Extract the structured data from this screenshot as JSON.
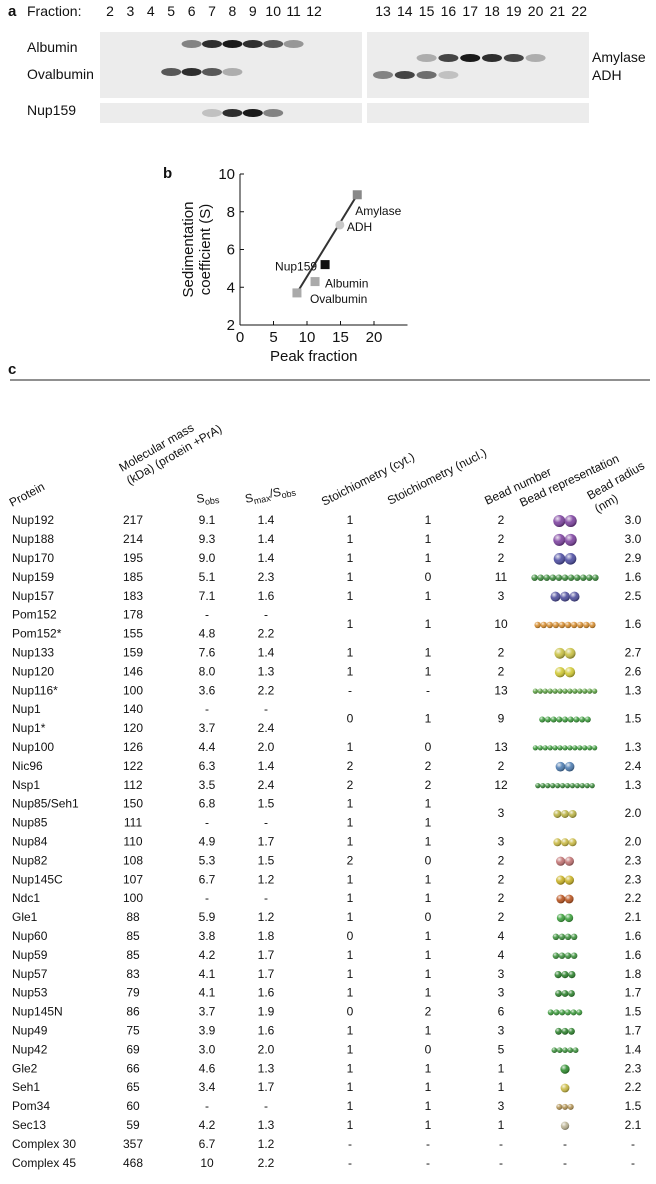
{
  "panel_a": {
    "label": "a",
    "fraction_label": "Fraction:",
    "fractions": [
      "2",
      "3",
      "4",
      "5",
      "6",
      "7",
      "8",
      "9",
      "10",
      "11",
      "12",
      "13",
      "14",
      "15",
      "16",
      "17",
      "18",
      "19",
      "20",
      "21",
      "22"
    ],
    "lanes_left": [
      "Albumin",
      "Ovalbumin",
      "Nup159"
    ],
    "lanes_right": [
      "Amylase",
      "ADH"
    ]
  },
  "chart_data": {
    "type": "scatter",
    "panel_label": "b",
    "xlabel": "Peak fraction",
    "ylabel": [
      "Sedimentation",
      "coefficient (S)"
    ],
    "xlim": [
      0,
      25
    ],
    "ylim": [
      2,
      10
    ],
    "xticks": [
      0,
      5,
      10,
      15,
      20
    ],
    "yticks": [
      2,
      4,
      6,
      8,
      10
    ],
    "fit_line": true,
    "fit_color": "#333333",
    "points": [
      {
        "label": "Ovalbumin",
        "x": 8.5,
        "y": 3.7,
        "color": "#aaaaaa",
        "marker": "square"
      },
      {
        "label": "Albumin",
        "x": 11.2,
        "y": 4.3,
        "color": "#aaaaaa",
        "marker": "square"
      },
      {
        "label": "Nup159",
        "x": 12.7,
        "y": 5.2,
        "color": "#111111",
        "marker": "square"
      },
      {
        "label": "ADH",
        "x": 14.9,
        "y": 7.3,
        "color": "#c8c8c8",
        "marker": "circle"
      },
      {
        "label": "Amylase",
        "x": 17.5,
        "y": 8.9,
        "color": "#888888",
        "marker": "square"
      }
    ]
  },
  "table": {
    "label": "c",
    "headers": [
      [
        "Protein"
      ],
      [
        "Molecular mass",
        "(kDa) (protein +PrA)"
      ],
      [
        [
          "S",
          "obs"
        ]
      ],
      [
        [
          "S",
          "max",
          "/S",
          "obs"
        ]
      ],
      [
        "Stoichiometry (cyt.)"
      ],
      [
        "Stoichiometry (nucl.)"
      ],
      [
        "Bead number"
      ],
      [
        "Bead representation"
      ],
      [
        "Bead radius",
        "(nm)"
      ]
    ],
    "rows": [
      [
        "Nup192",
        "217",
        "9.1",
        "1.4",
        "1",
        "1",
        "2",
        {
          "color": "#7b3f9e"
        },
        "3.0"
      ],
      [
        "Nup188",
        "214",
        "9.3",
        "1.4",
        "1",
        "1",
        "2",
        {
          "color": "#7b3f9e"
        },
        "3.0"
      ],
      [
        "Nup170",
        "195",
        "9.0",
        "1.4",
        "1",
        "1",
        "2",
        {
          "color": "#4a4aa0"
        },
        "2.9"
      ],
      [
        "Nup159",
        "185",
        "5.1",
        "2.3",
        "1",
        "0",
        "11",
        {
          "color": "#3a8a3a"
        },
        "1.6"
      ],
      [
        "Nup157",
        "183",
        "7.1",
        "1.6",
        "1",
        "1",
        "3",
        {
          "color": "#4a4a9a"
        },
        "2.5"
      ],
      [
        "Pom152",
        "178",
        "-",
        "-",
        {
          "text": "1",
          "rows": 2
        },
        {
          "text": "1",
          "rows": 2
        },
        {
          "text": "10",
          "rows": 2
        },
        {
          "color": "#d58a2a",
          "rows": 2
        },
        {
          "text": "1.6",
          "rows": 2
        }
      ],
      [
        "Pom152*",
        "155",
        "4.8",
        "2.2",
        null,
        null,
        null,
        null,
        null
      ],
      [
        "Nup133",
        "159",
        "7.6",
        "1.4",
        "1",
        "1",
        "2",
        {
          "color": "#c8c040"
        },
        "2.7"
      ],
      [
        "Nup120",
        "146",
        "8.0",
        "1.3",
        "1",
        "1",
        "2",
        {
          "color": "#d0c830"
        },
        "2.6"
      ],
      [
        "Nup116*",
        "100",
        "3.6",
        "2.2",
        "-",
        "-",
        "13",
        {
          "color": "#5aa040"
        },
        "1.3"
      ],
      [
        "Nup1",
        "140",
        "-",
        "-",
        {
          "text": "0",
          "rows": 2
        },
        {
          "text": "1",
          "rows": 2
        },
        {
          "text": "9",
          "rows": 2
        },
        {
          "color": "#3a9a3a",
          "rows": 2
        },
        {
          "text": "1.5",
          "rows": 2
        }
      ],
      [
        "Nup1*",
        "120",
        "3.7",
        "2.4",
        null,
        null,
        null,
        null,
        null
      ],
      [
        "Nup100",
        "126",
        "4.4",
        "2.0",
        "1",
        "0",
        "13",
        {
          "color": "#3a9a3a"
        },
        "1.3"
      ],
      [
        "Nic96",
        "122",
        "6.3",
        "1.4",
        "2",
        "2",
        "2",
        {
          "color": "#4a7ab0"
        },
        "2.4"
      ],
      [
        "Nsp1",
        "112",
        "3.5",
        "2.4",
        "2",
        "2",
        "12",
        {
          "color": "#3a8a3a"
        },
        "1.3"
      ],
      [
        "Nup85/Seh1",
        "150",
        "6.8",
        "1.5",
        "1",
        "1",
        {
          "text": "3",
          "rows": 2
        },
        {
          "color": "#b8b040",
          "rows": 2
        },
        {
          "text": "2.0",
          "rows": 2
        }
      ],
      [
        "Nup85",
        "111",
        "-",
        "-",
        "1",
        "1",
        null,
        null,
        null
      ],
      [
        "Nup84",
        "110",
        "4.9",
        "1.7",
        "1",
        "1",
        "3",
        {
          "color": "#c8b840"
        },
        "2.0"
      ],
      [
        "Nup82",
        "108",
        "5.3",
        "1.5",
        "2",
        "0",
        "2",
        {
          "color": "#c07070"
        },
        "2.3"
      ],
      [
        "Nup145C",
        "107",
        "6.7",
        "1.2",
        "1",
        "1",
        "2",
        {
          "color": "#c8b020"
        },
        "2.3"
      ],
      [
        "Ndc1",
        "100",
        "-",
        "-",
        "1",
        "1",
        "2",
        {
          "color": "#b8501a"
        },
        "2.2"
      ],
      [
        "Gle1",
        "88",
        "5.9",
        "1.2",
        "1",
        "0",
        "2",
        {
          "color": "#3aa03a"
        },
        "2.1"
      ],
      [
        "Nup60",
        "85",
        "3.8",
        "1.8",
        "0",
        "1",
        "4",
        {
          "color": "#3a903a"
        },
        "1.6"
      ],
      [
        "Nup59",
        "85",
        "4.2",
        "1.7",
        "1",
        "1",
        "4",
        {
          "color": "#3a903a"
        },
        "1.6"
      ],
      [
        "Nup57",
        "83",
        "4.1",
        "1.7",
        "1",
        "1",
        "3",
        {
          "color": "#2a802a"
        },
        "1.8"
      ],
      [
        "Nup53",
        "79",
        "4.1",
        "1.6",
        "1",
        "1",
        "3",
        {
          "color": "#2a802a"
        },
        "1.7"
      ],
      [
        "Nup145N",
        "86",
        "3.7",
        "1.9",
        "0",
        "2",
        "6",
        {
          "color": "#3a9a3a"
        },
        "1.5"
      ],
      [
        "Nup49",
        "75",
        "3.9",
        "1.6",
        "1",
        "1",
        "3",
        {
          "color": "#2a802a"
        },
        "1.7"
      ],
      [
        "Nup42",
        "69",
        "3.0",
        "2.0",
        "1",
        "0",
        "5",
        {
          "color": "#3a903a"
        },
        "1.4"
      ],
      [
        "Gle2",
        "66",
        "4.6",
        "1.3",
        "1",
        "1",
        "1",
        {
          "color": "#2a8a2a"
        },
        "2.3"
      ],
      [
        "Seh1",
        "65",
        "3.4",
        "1.7",
        "1",
        "1",
        "1",
        {
          "color": "#c8b840"
        },
        "2.2"
      ],
      [
        "Pom34",
        "60",
        "-",
        "-",
        "1",
        "1",
        "3",
        {
          "color": "#b09050"
        },
        "1.5"
      ],
      [
        "Sec13",
        "59",
        "4.2",
        "1.3",
        "1",
        "1",
        "1",
        {
          "color": "#b8b090"
        },
        "2.1"
      ],
      [
        "Complex 30",
        "357",
        "6.7",
        "1.2",
        "-",
        "-",
        "-",
        "-",
        "-"
      ],
      [
        "Complex 45",
        "468",
        "10",
        "2.2",
        "-",
        "-",
        "-",
        "-",
        "-"
      ]
    ]
  }
}
